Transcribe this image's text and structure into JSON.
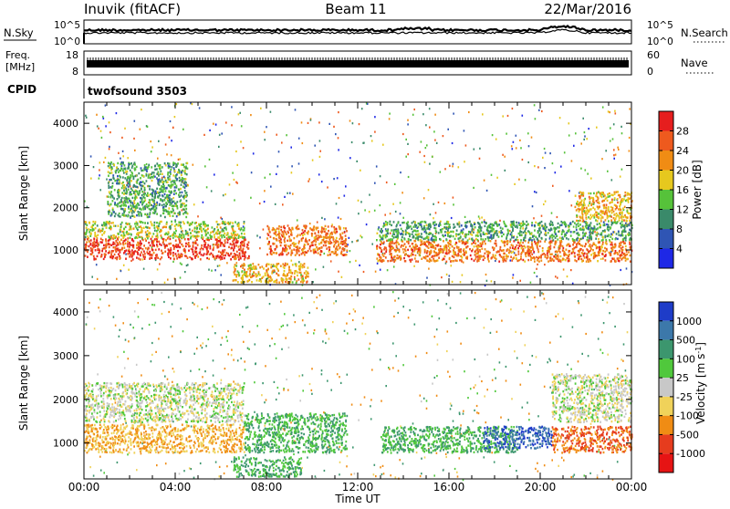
{
  "header": {
    "station": "Inuvik (fitACF)",
    "beam": "Beam 11",
    "date": "22/Mar/2016"
  },
  "noise_panel": {
    "left_label": "N.Sky",
    "right_label": "N.Search",
    "left_ticks": [
      "10^5",
      "10^0"
    ],
    "right_ticks": [
      "10^5",
      "10^0"
    ]
  },
  "freq_panel": {
    "left_label_line1": "Freq.",
    "left_label_line2": "[MHz]",
    "left_ticks": [
      "18",
      "8"
    ],
    "right_label": "Nave",
    "right_ticks": [
      "60",
      "0"
    ]
  },
  "cpid_panel": {
    "label": "CPID",
    "value": "twofsound 3503"
  },
  "chart_data": [
    {
      "type": "heatmap",
      "name": "Power",
      "ylabel": "Slant Range [km]",
      "xlabel": "Time UT",
      "x_ticks": [
        "00:00",
        "04:00",
        "08:00",
        "12:00",
        "16:00",
        "20:00",
        "00:00"
      ],
      "y_ticks": [
        1000,
        2000,
        3000,
        4000
      ],
      "ylim": [
        180,
        4500
      ],
      "colorbar": {
        "label": "Power [dB]",
        "ticks": [
          "4",
          "8",
          "12",
          "16",
          "20",
          "24",
          "28"
        ],
        "colors": [
          "#1e28e6",
          "#2f55b4",
          "#3a8a6a",
          "#56c23a",
          "#e6c81e",
          "#f08c14",
          "#ee5a1e",
          "#e61e1e"
        ]
      },
      "bands": [
        {
          "t_start": 0.0,
          "t_end": 7.2,
          "range_low": 800,
          "range_high": 1300,
          "value": 28
        },
        {
          "t_start": 0.0,
          "t_end": 7.0,
          "range_low": 1300,
          "range_high": 1700,
          "value": 16
        },
        {
          "t_start": 1.0,
          "t_end": 4.5,
          "range_low": 1800,
          "range_high": 3100,
          "value": 12
        },
        {
          "t_start": 6.5,
          "t_end": 9.8,
          "range_low": 250,
          "range_high": 700,
          "value": 20
        },
        {
          "t_start": 8.0,
          "t_end": 11.5,
          "range_low": 900,
          "range_high": 1600,
          "value": 24
        },
        {
          "t_start": 12.8,
          "t_end": 24.0,
          "range_low": 750,
          "range_high": 1250,
          "value": 24
        },
        {
          "t_start": 12.8,
          "t_end": 24.0,
          "range_low": 1250,
          "range_high": 1700,
          "value": 12
        },
        {
          "t_start": 21.5,
          "t_end": 24.0,
          "range_low": 1700,
          "range_high": 2400,
          "value": 20
        }
      ]
    },
    {
      "type": "heatmap",
      "name": "Velocity",
      "ylabel": "Slant Range [km]",
      "xlabel": "Time UT",
      "x_ticks": [
        "00:00",
        "04:00",
        "08:00",
        "12:00",
        "16:00",
        "20:00",
        "00:00"
      ],
      "y_ticks": [
        1000,
        2000,
        3000,
        4000
      ],
      "ylim": [
        180,
        4500
      ],
      "colorbar": {
        "label": "Velocity [m s^-1]",
        "ticks": [
          "1000",
          "500",
          "100",
          "25",
          "-25",
          "-100",
          "-500",
          "-1000"
        ],
        "colors": [
          "#1e3cc8",
          "#3c78aa",
          "#3c966e",
          "#50c83c",
          "#c8c8c8",
          "#f0d25a",
          "#f08c14",
          "#e63c1e",
          "#e61414"
        ]
      },
      "bands": [
        {
          "t_start": 0.0,
          "t_end": 7.0,
          "range_low": 800,
          "range_high": 1450,
          "value": -100
        },
        {
          "t_start": 0.0,
          "t_end": 7.0,
          "range_low": 1500,
          "range_high": 2400,
          "value": 0
        },
        {
          "t_start": 6.5,
          "t_end": 9.5,
          "range_low": 250,
          "range_high": 700,
          "value": 100
        },
        {
          "t_start": 7.0,
          "t_end": 11.5,
          "range_low": 800,
          "range_high": 1700,
          "value": 100
        },
        {
          "t_start": 13.0,
          "t_end": 19.0,
          "range_low": 800,
          "range_high": 1400,
          "value": 100
        },
        {
          "t_start": 17.5,
          "t_end": 20.5,
          "range_low": 900,
          "range_high": 1400,
          "value": 1000
        },
        {
          "t_start": 20.5,
          "t_end": 24.0,
          "range_low": 800,
          "range_high": 1400,
          "value": -500
        },
        {
          "t_start": 20.5,
          "t_end": 24.0,
          "range_low": 1500,
          "range_high": 2600,
          "value": 0
        }
      ]
    }
  ]
}
